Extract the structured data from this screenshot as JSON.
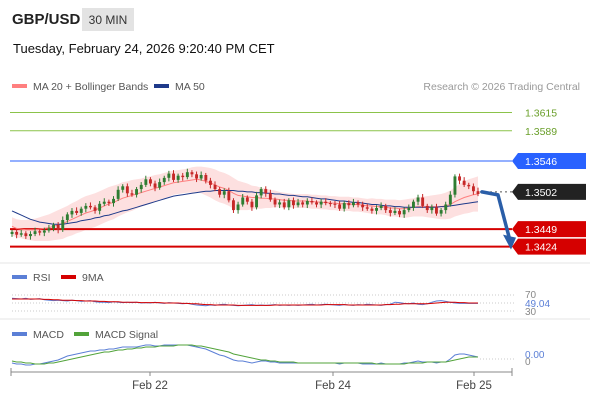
{
  "header": {
    "symbol": "GBP/USD",
    "timeframe": "30 MIN",
    "datetime": "Tuesday, February 24, 2026 9:20:40 PM CET"
  },
  "legend": {
    "ma20_label": "MA 20 + Bollinger Bands",
    "ma50_label": "MA 50",
    "credit": "Research © 2026 Trading Central"
  },
  "colors": {
    "up_candle": "#2e7d32",
    "down_candle": "#c62828",
    "resistance": "#2962ff",
    "target_green": "#8bc34a",
    "support": "#d50000",
    "current": "#222222",
    "ma20": "#ff7f7f",
    "ma50": "#1e3a8a",
    "bollinger_fill": "#fde0e0",
    "forecast_arrow": "#2a5ea8",
    "rsi": "#5b7fd6",
    "rsi_ma": "#d50000",
    "macd": "#5b7fd6",
    "macd_signal": "#52a33a"
  },
  "chart_data": [
    {
      "type": "candlestick",
      "yrange": [
        1.3405,
        1.364
      ],
      "x_ticks": [
        "Feb 22",
        "Feb 24",
        "Feb 25"
      ],
      "levels": [
        {
          "value": 1.3615,
          "label": "1.3615",
          "kind": "target"
        },
        {
          "value": 1.3589,
          "label": "1.3589",
          "kind": "target"
        },
        {
          "value": 1.3546,
          "label": "1.3546",
          "kind": "resistance"
        },
        {
          "value": 1.3502,
          "label": "1.3502",
          "kind": "current"
        },
        {
          "value": 1.3449,
          "label": "1.3449",
          "kind": "support"
        },
        {
          "value": 1.3424,
          "label": "1.3424",
          "kind": "support"
        }
      ],
      "forecast": {
        "from": 1.3502,
        "to": 1.3424
      },
      "closes": [
        1.3445,
        1.3441,
        1.3443,
        1.3439,
        1.3442,
        1.3446,
        1.3444,
        1.3447,
        1.345,
        1.3455,
        1.3448,
        1.3462,
        1.347,
        1.3475,
        1.3472,
        1.3478,
        1.3482,
        1.348,
        1.3475,
        1.3485,
        1.3488,
        1.3486,
        1.3492,
        1.3505,
        1.351,
        1.35,
        1.3498,
        1.3506,
        1.3512,
        1.352,
        1.3514,
        1.3508,
        1.3516,
        1.3522,
        1.3528,
        1.3519,
        1.3525,
        1.3523,
        1.353,
        1.3527,
        1.3521,
        1.3526,
        1.3518,
        1.3512,
        1.3506,
        1.3498,
        1.3503,
        1.349,
        1.3476,
        1.3484,
        1.3494,
        1.3488,
        1.348,
        1.3497,
        1.3506,
        1.35,
        1.3491,
        1.3484,
        1.3487,
        1.348,
        1.349,
        1.3483,
        1.3487,
        1.3484,
        1.3489,
        1.3487,
        1.3484,
        1.3488,
        1.3486,
        1.3485,
        1.3484,
        1.3478,
        1.3486,
        1.3483,
        1.3487,
        1.3484,
        1.348,
        1.3478,
        1.3475,
        1.3479,
        1.3482,
        1.3476,
        1.3472,
        1.3475,
        1.347,
        1.3476,
        1.3479,
        1.3488,
        1.3494,
        1.3482,
        1.3476,
        1.348,
        1.3471,
        1.3476,
        1.3484,
        1.3498,
        1.3524,
        1.3518,
        1.3512,
        1.351,
        1.3503,
        1.3499
      ],
      "ma20": [
        1.3453,
        1.345,
        1.3449,
        1.3448,
        1.3448,
        1.3448,
        1.3449,
        1.345,
        1.3451,
        1.3453,
        1.3455,
        1.3457,
        1.346,
        1.3463,
        1.3466,
        1.3469,
        1.3472,
        1.3474,
        1.3476,
        1.3479,
        1.3482,
        1.3485,
        1.3487,
        1.349,
        1.3493,
        1.3495,
        1.3497,
        1.3499,
        1.3501,
        1.3503,
        1.3505,
        1.3507,
        1.3509,
        1.3511,
        1.3513,
        1.3515,
        1.3516,
        1.3517,
        1.3518,
        1.3519,
        1.352,
        1.3519,
        1.3517,
        1.3515,
        1.3512,
        1.3509,
        1.3507,
        1.3504,
        1.35,
        1.3497,
        1.3496,
        1.3495,
        1.3494,
        1.3494,
        1.3493,
        1.3493,
        1.3492,
        1.3492,
        1.3491,
        1.349,
        1.349,
        1.3489,
        1.3489,
        1.3489,
        1.3489,
        1.3488,
        1.3488,
        1.3487,
        1.3487,
        1.3486,
        1.3486,
        1.3485,
        1.3485,
        1.3485,
        1.3484,
        1.3484,
        1.3483,
        1.3482,
        1.3482,
        1.3481,
        1.3481,
        1.348,
        1.3479,
        1.3479,
        1.3478,
        1.3478,
        1.3479,
        1.348,
        1.3481,
        1.3481,
        1.3481,
        1.3481,
        1.3481,
        1.3481,
        1.3482,
        1.3484,
        1.3488,
        1.3491,
        1.3494,
        1.3496,
        1.3498,
        1.3499
      ],
      "ma50": [
        1.3475,
        1.3472,
        1.3469,
        1.3466,
        1.3463,
        1.3461,
        1.3459,
        1.3458,
        1.3457,
        1.3456,
        1.3456,
        1.3456,
        1.3457,
        1.3458,
        1.3459,
        1.3461,
        1.3462,
        1.3463,
        1.3465,
        1.3466,
        1.3468,
        1.3469,
        1.3471,
        1.3473,
        1.3475,
        1.3476,
        1.3478,
        1.348,
        1.3482,
        1.3484,
        1.3486,
        1.3488,
        1.349,
        1.3492,
        1.3494,
        1.3496,
        1.3497,
        1.3498,
        1.3499,
        1.35,
        1.3501,
        1.3502,
        1.3503,
        1.3503,
        1.3504,
        1.3504,
        1.3504,
        1.3504,
        1.3504,
        1.3503,
        1.3503,
        1.3502,
        1.3502,
        1.3501,
        1.3501,
        1.35,
        1.35,
        1.3499,
        1.3499,
        1.3498,
        1.3497,
        1.3497,
        1.3496,
        1.3495,
        1.3495,
        1.3494,
        1.3493,
        1.3492,
        1.3492,
        1.3491,
        1.349,
        1.3489,
        1.3489,
        1.3488,
        1.3487,
        1.3487,
        1.3486,
        1.3485,
        1.3484,
        1.3484,
        1.3483,
        1.3482,
        1.3482,
        1.3481,
        1.3481,
        1.348,
        1.348,
        1.348,
        1.348,
        1.348,
        1.348,
        1.348,
        1.348,
        1.3481,
        1.3481,
        1.3482,
        1.3483,
        1.3484,
        1.3485,
        1.3486,
        1.3487,
        1.3488
      ],
      "band_width": [
        0.0013,
        0.0013,
        0.0013,
        0.0014,
        0.0015,
        0.0016,
        0.0017,
        0.0018,
        0.0019,
        0.002,
        0.0021,
        0.0022,
        0.0022,
        0.0023,
        0.0023,
        0.0024,
        0.0024,
        0.0024,
        0.0024,
        0.0024,
        0.0024,
        0.0024,
        0.0024,
        0.0023,
        0.0023,
        0.0022,
        0.0022,
        0.0021,
        0.002,
        0.002,
        0.0019,
        0.0019,
        0.0018,
        0.0018,
        0.0018,
        0.0017,
        0.0017,
        0.0017,
        0.0017,
        0.0018,
        0.0018,
        0.0019,
        0.002,
        0.0021,
        0.0022,
        0.0022,
        0.0022,
        0.0022,
        0.0022,
        0.0021,
        0.002,
        0.0019,
        0.0017,
        0.0016,
        0.0015,
        0.0014,
        0.0013,
        0.0012,
        0.0011,
        0.0011,
        0.001,
        0.001,
        0.001,
        0.001,
        0.001,
        0.001,
        0.001,
        0.001,
        0.001,
        0.001,
        0.001,
        0.001,
        0.001,
        0.001,
        0.001,
        0.001,
        0.001,
        0.001,
        0.0011,
        0.0011,
        0.0011,
        0.0011,
        0.0012,
        0.0012,
        0.0012,
        0.0013,
        0.0013,
        0.0013,
        0.0014,
        0.0014,
        0.0015,
        0.0016,
        0.0017,
        0.0018,
        0.0019,
        0.002,
        0.0021,
        0.0022,
        0.0023,
        0.0024,
        0.0024,
        0.0025
      ]
    },
    {
      "type": "line",
      "legend": [
        "RSI",
        "9MA"
      ],
      "yrange": [
        30,
        70
      ],
      "ticks": [
        "70",
        "30"
      ],
      "last_value": "49.04",
      "rsi": [
        62,
        61,
        60,
        62,
        59,
        60,
        61,
        58,
        57,
        56,
        57,
        56,
        55,
        57,
        56,
        54,
        55,
        56,
        53,
        52,
        52,
        51,
        53,
        52,
        51,
        52,
        51,
        52,
        50,
        51,
        50,
        52,
        50,
        49,
        51,
        50,
        49,
        48,
        49,
        47,
        45,
        44,
        43,
        45,
        44,
        46,
        47,
        45,
        44,
        43,
        44,
        45,
        46,
        44,
        45,
        44,
        45,
        46,
        44,
        45,
        44,
        45,
        44,
        45,
        46,
        47,
        45,
        46,
        47,
        46,
        45,
        44,
        46,
        45,
        44,
        46,
        45,
        47,
        46,
        45,
        44,
        46,
        47,
        52,
        51,
        49,
        48,
        50,
        47,
        46,
        48,
        52,
        55,
        56,
        54,
        52,
        50,
        49,
        49,
        49,
        49,
        49
      ],
      "rsi_ma": [
        60,
        60,
        60,
        60,
        60,
        60,
        60,
        59,
        59,
        58,
        58,
        57,
        57,
        57,
        56,
        56,
        55,
        55,
        55,
        54,
        54,
        53,
        53,
        53,
        52,
        52,
        52,
        52,
        51,
        51,
        51,
        51,
        51,
        50,
        50,
        50,
        50,
        49,
        49,
        48,
        48,
        47,
        46,
        46,
        45,
        45,
        45,
        45,
        45,
        44,
        44,
        44,
        44,
        44,
        44,
        44,
        44,
        45,
        45,
        45,
        45,
        45,
        45,
        45,
        45,
        45,
        45,
        45,
        46,
        46,
        46,
        46,
        46,
        45,
        45,
        45,
        45,
        45,
        45,
        45,
        45,
        46,
        46,
        47,
        47,
        48,
        48,
        48,
        48,
        48,
        48,
        49,
        50,
        51,
        52,
        52,
        52,
        51,
        51,
        50,
        50,
        50
      ]
    },
    {
      "type": "line",
      "legend": [
        "MACD",
        "MACD Signal"
      ],
      "yrange": [
        -0.0008,
        0.0018
      ],
      "ticks": [
        "0.00",
        "0"
      ],
      "last_value": "0.00",
      "macd": [
        -0.0003,
        -0.0004,
        -0.0004,
        -0.0005,
        -0.0005,
        -0.0004,
        -0.0004,
        -0.0003,
        -0.0002,
        -0.0001,
        0.0,
        0.0002,
        0.0004,
        0.0005,
        0.0006,
        0.0007,
        0.0008,
        0.0009,
        0.0009,
        0.001,
        0.001,
        0.0011,
        0.0011,
        0.0012,
        0.0013,
        0.0013,
        0.0013,
        0.0013,
        0.0014,
        0.0015,
        0.0015,
        0.0014,
        0.0014,
        0.0015,
        0.0015,
        0.0015,
        0.0015,
        0.0015,
        0.0015,
        0.0014,
        0.0013,
        0.0012,
        0.0011,
        0.0009,
        0.0007,
        0.0005,
        0.0004,
        0.0002,
        0.0,
        -0.0001,
        -0.0001,
        -0.0002,
        -0.0003,
        -0.0002,
        -0.0001,
        -0.0001,
        -0.0002,
        -0.0002,
        -0.0003,
        -0.0003,
        -0.0003,
        -0.0003,
        -0.0003,
        -0.0003,
        -0.0003,
        -0.0003,
        -0.0003,
        -0.0003,
        -0.0003,
        -0.0003,
        -0.0003,
        -0.0004,
        -0.0003,
        -0.0003,
        -0.0003,
        -0.0003,
        -0.0004,
        -0.0004,
        -0.0004,
        -0.0004,
        -0.0003,
        -0.0004,
        -0.0004,
        -0.0004,
        -0.0004,
        -0.0003,
        -0.0003,
        -0.0002,
        -0.0001,
        -0.0002,
        -0.0002,
        -0.0002,
        -0.0003,
        -0.0002,
        -0.0002,
        0.0001,
        0.0005,
        0.0006,
        0.0006,
        0.0005,
        0.0004,
        0.0003
      ],
      "signal": [
        -0.0001,
        -0.0002,
        -0.0002,
        -0.0003,
        -0.0003,
        -0.0004,
        -0.0004,
        -0.0004,
        -0.0003,
        -0.0003,
        -0.0002,
        -0.0001,
        0.0,
        0.0001,
        0.0002,
        0.0003,
        0.0004,
        0.0005,
        0.0006,
        0.0007,
        0.0008,
        0.0008,
        0.0009,
        0.001,
        0.001,
        0.0011,
        0.0011,
        0.0012,
        0.0012,
        0.0013,
        0.0013,
        0.0013,
        0.0014,
        0.0014,
        0.0014,
        0.0014,
        0.0015,
        0.0015,
        0.0015,
        0.0015,
        0.0014,
        0.0014,
        0.0013,
        0.0012,
        0.0011,
        0.001,
        0.0009,
        0.0008,
        0.0006,
        0.0005,
        0.0004,
        0.0003,
        0.0002,
        0.0001,
        0.0,
        0.0,
        -0.0001,
        -0.0001,
        -0.0002,
        -0.0002,
        -0.0002,
        -0.0002,
        -0.0003,
        -0.0003,
        -0.0003,
        -0.0003,
        -0.0003,
        -0.0003,
        -0.0003,
        -0.0003,
        -0.0003,
        -0.0003,
        -0.0003,
        -0.0003,
        -0.0003,
        -0.0003,
        -0.0003,
        -0.0003,
        -0.0003,
        -0.0004,
        -0.0004,
        -0.0004,
        -0.0004,
        -0.0004,
        -0.0004,
        -0.0004,
        -0.0003,
        -0.0003,
        -0.0003,
        -0.0003,
        -0.0002,
        -0.0002,
        -0.0002,
        -0.0002,
        -0.0002,
        -0.0001,
        0.0,
        0.0001,
        0.0002,
        0.0003,
        0.0003,
        0.0003
      ]
    }
  ]
}
